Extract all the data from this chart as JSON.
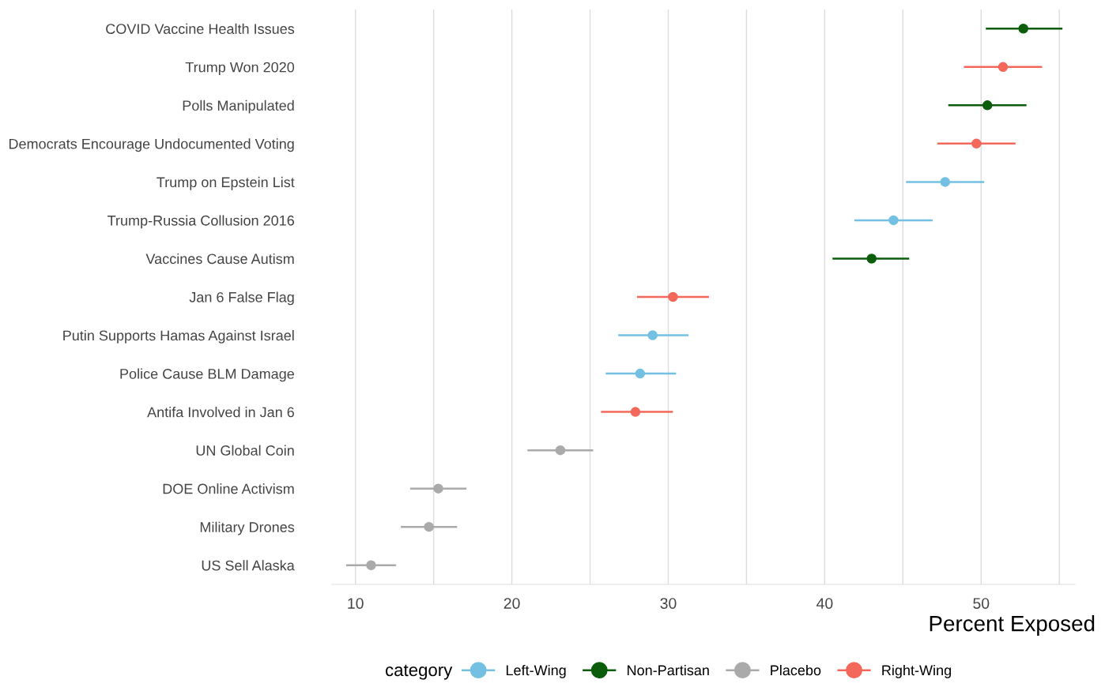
{
  "chart_data": {
    "type": "scatter",
    "orientation": "horizontal",
    "xlabel": "Percent Exposed",
    "legend_title": "category",
    "legend": "bottom",
    "grid": "x",
    "marker": "circle",
    "categories": [
      "COVID Vaccine Health Issues",
      "Trump Won 2020",
      "Polls Manipulated",
      "Democrats Encourage Undocumented Voting",
      "Trump on Epstein List",
      "Trump-Russia Collusion 2016",
      "Vaccines Cause Autism",
      "Jan 6 False Flag",
      "Putin Supports Hamas Against Israel",
      "Police Cause BLM Damage",
      "Antifa Involved in Jan 6",
      "UN Global Coin",
      "DOE Online Activism",
      "Military Drones",
      "US Sell Alaska"
    ],
    "xlim": [
      8.5,
      56
    ],
    "xticks": [
      10,
      {
        "value": 15,
        "label": null
      },
      20,
      {
        "value": 25,
        "label": null
      },
      30,
      {
        "value": 35,
        "label": null
      },
      40,
      {
        "value": 45,
        "label": null
      },
      50,
      {
        "value": 55,
        "label": null
      }
    ],
    "series": [
      {
        "name": "Left-Wing",
        "color": "#74c0e3",
        "values": [
          null,
          null,
          null,
          null,
          47.7,
          44.4,
          null,
          null,
          29.0,
          28.2,
          null,
          null,
          null,
          null,
          null
        ],
        "errors": [
          null,
          null,
          null,
          null,
          [
            45.2,
            50.2
          ],
          [
            41.9,
            46.9
          ],
          null,
          null,
          [
            26.8,
            31.3
          ],
          [
            26.0,
            30.5
          ],
          null,
          null,
          null,
          null,
          null
        ]
      },
      {
        "name": "Non-Partisan",
        "color": "#0b5d0b",
        "values": [
          52.7,
          null,
          50.4,
          null,
          null,
          null,
          43.0,
          null,
          null,
          null,
          null,
          null,
          null,
          null,
          null
        ],
        "errors": [
          [
            50.3,
            55.2
          ],
          null,
          [
            47.9,
            52.9
          ],
          null,
          null,
          null,
          [
            40.5,
            45.4
          ],
          null,
          null,
          null,
          null,
          null,
          null,
          null,
          null
        ]
      },
      {
        "name": "Placebo",
        "color": "#aaaaaa",
        "values": [
          null,
          null,
          null,
          null,
          null,
          null,
          null,
          null,
          null,
          null,
          null,
          23.1,
          15.3,
          14.7,
          11.0
        ],
        "errors": [
          null,
          null,
          null,
          null,
          null,
          null,
          null,
          null,
          null,
          null,
          null,
          [
            21.0,
            25.2
          ],
          [
            13.5,
            17.1
          ],
          [
            12.9,
            16.5
          ],
          [
            9.4,
            12.6
          ]
        ]
      },
      {
        "name": "Right-Wing",
        "color": "#f4685b",
        "values": [
          null,
          51.4,
          null,
          49.7,
          null,
          null,
          null,
          30.3,
          null,
          null,
          27.9,
          null,
          null,
          null,
          null
        ],
        "errors": [
          null,
          [
            48.9,
            53.9
          ],
          null,
          [
            47.2,
            52.2
          ],
          null,
          null,
          null,
          [
            28.0,
            32.6
          ],
          null,
          null,
          [
            25.7,
            30.3
          ],
          null,
          null,
          null,
          null
        ]
      }
    ]
  }
}
